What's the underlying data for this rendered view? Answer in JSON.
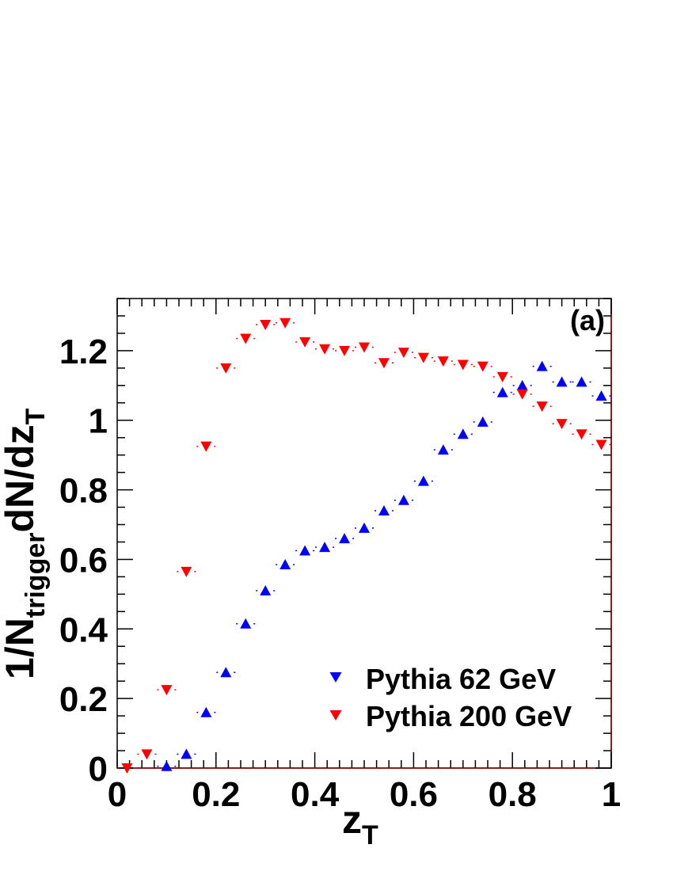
{
  "chart_data": {
    "type": "scatter",
    "panel_label": "(a)",
    "xlabel": {
      "main": "z",
      "sub": "T"
    },
    "ylabel": {
      "p1": "1/N",
      "sub1": "trigger",
      "p2": "dN/dz",
      "sub2": "T"
    },
    "xlim": [
      0,
      1
    ],
    "ylim": [
      0,
      1.35
    ],
    "x_ticks": [
      0,
      0.2,
      0.4,
      0.6,
      0.8,
      1
    ],
    "x_tick_labels": [
      "0",
      "0.2",
      "0.4",
      "0.6",
      "0.8",
      "1"
    ],
    "y_ticks": [
      0,
      0.2,
      0.4,
      0.6,
      0.8,
      1,
      1.2
    ],
    "y_tick_labels": [
      "0",
      "0.2",
      "0.4",
      "0.6",
      "0.8",
      "1",
      "1.2"
    ],
    "legend_position": "bottom-right",
    "series": [
      {
        "name": "Pythia 62 GeV",
        "marker": "triangle-up",
        "color": "#0000ff",
        "x": [
          0.1,
          0.14,
          0.18,
          0.22,
          0.26,
          0.3,
          0.34,
          0.38,
          0.42,
          0.46,
          0.5,
          0.54,
          0.58,
          0.62,
          0.66,
          0.7,
          0.74,
          0.78,
          0.82,
          0.86,
          0.9,
          0.94,
          0.98
        ],
        "y": [
          0.005,
          0.04,
          0.16,
          0.275,
          0.415,
          0.51,
          0.585,
          0.625,
          0.635,
          0.66,
          0.69,
          0.74,
          0.77,
          0.825,
          0.915,
          0.96,
          0.995,
          1.08,
          1.1,
          1.155,
          1.11,
          1.11,
          1.07
        ]
      },
      {
        "name": "Pythia 200 GeV",
        "marker": "triangle-down",
        "color": "#ff0000",
        "x": [
          0.02,
          0.06,
          0.1,
          0.14,
          0.18,
          0.22,
          0.26,
          0.3,
          0.34,
          0.38,
          0.42,
          0.46,
          0.5,
          0.54,
          0.58,
          0.62,
          0.66,
          0.7,
          0.74,
          0.78,
          0.82,
          0.86,
          0.9,
          0.94,
          0.98
        ],
        "y": [
          0.0,
          0.04,
          0.225,
          0.565,
          0.925,
          1.15,
          1.235,
          1.275,
          1.28,
          1.225,
          1.205,
          1.2,
          1.21,
          1.165,
          1.195,
          1.18,
          1.17,
          1.16,
          1.155,
          1.125,
          1.075,
          1.04,
          0.99,
          0.96,
          0.93
        ]
      }
    ]
  }
}
